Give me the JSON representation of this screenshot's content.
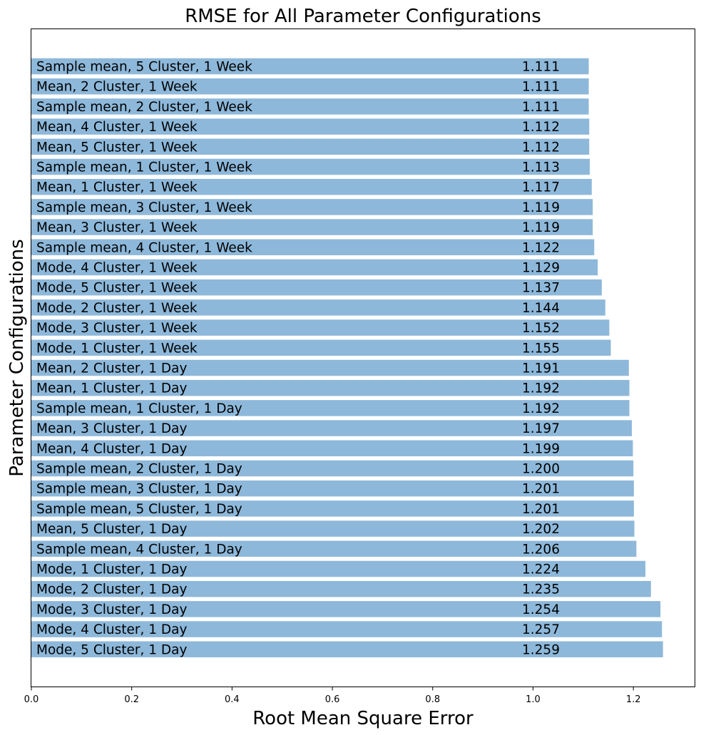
{
  "chart_data": {
    "type": "bar",
    "orientation": "horizontal",
    "title": "RMSE for All Parameter Configurations",
    "xlabel": "Root Mean Square Error",
    "ylabel": "Parameter Configurations",
    "xlim": [
      0,
      1.322
    ],
    "x_ticks": [
      "0.0",
      "0.2",
      "0.4",
      "0.6",
      "0.8",
      "1.0",
      "1.2"
    ],
    "x_tick_values": [
      0,
      0.2,
      0.4,
      0.6,
      0.8,
      1.0,
      1.2
    ],
    "bar_color": "#8db8da",
    "grid": false,
    "bars": [
      {
        "label": "Sample mean, 5 Cluster, 1 Week",
        "value": 1.111,
        "value_text": "1.111"
      },
      {
        "label": "Mean, 2 Cluster, 1 Week",
        "value": 1.111,
        "value_text": "1.111"
      },
      {
        "label": "Sample mean, 2 Cluster, 1 Week",
        "value": 1.111,
        "value_text": "1.111"
      },
      {
        "label": "Mean, 4 Cluster, 1 Week",
        "value": 1.112,
        "value_text": "1.112"
      },
      {
        "label": "Mean, 5 Cluster, 1 Week",
        "value": 1.112,
        "value_text": "1.112"
      },
      {
        "label": "Sample mean, 1 Cluster, 1 Week",
        "value": 1.113,
        "value_text": "1.113"
      },
      {
        "label": "Mean, 1 Cluster, 1 Week",
        "value": 1.117,
        "value_text": "1.117"
      },
      {
        "label": "Sample mean, 3 Cluster, 1 Week",
        "value": 1.119,
        "value_text": "1.119"
      },
      {
        "label": "Mean, 3 Cluster, 1 Week",
        "value": 1.119,
        "value_text": "1.119"
      },
      {
        "label": "Sample mean, 4 Cluster, 1 Week",
        "value": 1.122,
        "value_text": "1.122"
      },
      {
        "label": "Mode, 4 Cluster, 1 Week",
        "value": 1.129,
        "value_text": "1.129"
      },
      {
        "label": "Mode, 5 Cluster, 1 Week",
        "value": 1.137,
        "value_text": "1.137"
      },
      {
        "label": "Mode, 2 Cluster, 1 Week",
        "value": 1.144,
        "value_text": "1.144"
      },
      {
        "label": "Mode, 3 Cluster, 1 Week",
        "value": 1.152,
        "value_text": "1.152"
      },
      {
        "label": "Mode, 1 Cluster, 1 Week",
        "value": 1.155,
        "value_text": "1.155"
      },
      {
        "label": "Mean, 2 Cluster, 1 Day",
        "value": 1.191,
        "value_text": "1.191"
      },
      {
        "label": "Mean, 1 Cluster, 1 Day",
        "value": 1.192,
        "value_text": "1.192"
      },
      {
        "label": "Sample mean, 1 Cluster, 1 Day",
        "value": 1.192,
        "value_text": "1.192"
      },
      {
        "label": "Mean, 3 Cluster, 1 Day",
        "value": 1.197,
        "value_text": "1.197"
      },
      {
        "label": "Mean, 4 Cluster, 1 Day",
        "value": 1.199,
        "value_text": "1.199"
      },
      {
        "label": "Sample mean, 2 Cluster, 1 Day",
        "value": 1.2,
        "value_text": "1.200"
      },
      {
        "label": "Sample mean, 3 Cluster, 1 Day",
        "value": 1.201,
        "value_text": "1.201"
      },
      {
        "label": "Sample mean, 5 Cluster, 1 Day",
        "value": 1.201,
        "value_text": "1.201"
      },
      {
        "label": "Mean, 5 Cluster, 1 Day",
        "value": 1.202,
        "value_text": "1.202"
      },
      {
        "label": "Sample mean, 4 Cluster, 1 Day",
        "value": 1.206,
        "value_text": "1.206"
      },
      {
        "label": "Mode, 1 Cluster, 1 Day",
        "value": 1.224,
        "value_text": "1.224"
      },
      {
        "label": "Mode, 2 Cluster, 1 Day",
        "value": 1.235,
        "value_text": "1.235"
      },
      {
        "label": "Mode, 3 Cluster, 1 Day",
        "value": 1.254,
        "value_text": "1.254"
      },
      {
        "label": "Mode, 4 Cluster, 1 Day",
        "value": 1.257,
        "value_text": "1.257"
      },
      {
        "label": "Mode, 5 Cluster, 1 Day",
        "value": 1.259,
        "value_text": "1.259"
      }
    ]
  }
}
